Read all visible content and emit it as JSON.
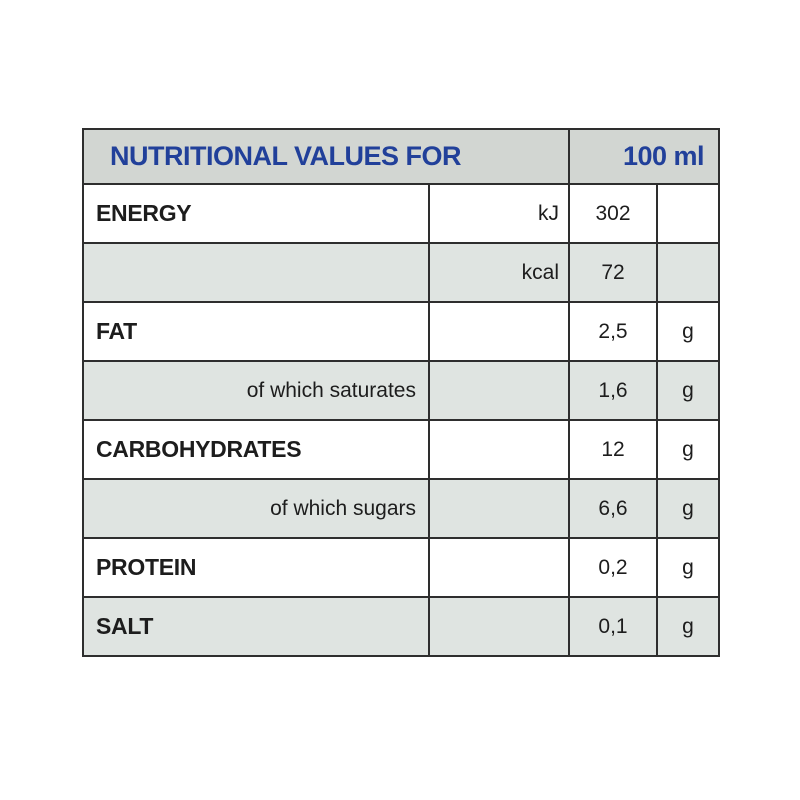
{
  "colors": {
    "header_text_blue": "#21409a",
    "header_bg": "#d2d6d2",
    "shaded_row_bg": "#dfe4e1",
    "white_row_bg": "#ffffff",
    "border": "#2e2e2e",
    "body_text": "#1d1d1d",
    "page_bg": "#ffffff"
  },
  "table": {
    "header": {
      "title": "NUTRITIONAL VALUES FOR",
      "amount": "100 ml"
    },
    "rows": [
      {
        "label": "ENERGY",
        "label_style": "main",
        "unit_prefix": "kJ",
        "value": "302",
        "unit": "",
        "shaded": false
      },
      {
        "label": "",
        "label_style": "main",
        "unit_prefix": "kcal",
        "value": "72",
        "unit": "",
        "shaded": true
      },
      {
        "label": "FAT",
        "label_style": "main",
        "unit_prefix": "",
        "value": "2,5",
        "unit": "g",
        "shaded": false
      },
      {
        "label": "of which saturates",
        "label_style": "sub",
        "unit_prefix": "",
        "value": "1,6",
        "unit": "g",
        "shaded": true
      },
      {
        "label": "CARBOHYDRATES",
        "label_style": "main",
        "unit_prefix": "",
        "value": "12",
        "unit": "g",
        "shaded": false
      },
      {
        "label": "of which sugars",
        "label_style": "sub",
        "unit_prefix": "",
        "value": "6,6",
        "unit": "g",
        "shaded": true
      },
      {
        "label": "PROTEIN",
        "label_style": "main",
        "unit_prefix": "",
        "value": "0,2",
        "unit": "g",
        "shaded": false
      },
      {
        "label": "SALT",
        "label_style": "main",
        "unit_prefix": "",
        "value": "0,1",
        "unit": "g",
        "shaded": true
      }
    ]
  }
}
